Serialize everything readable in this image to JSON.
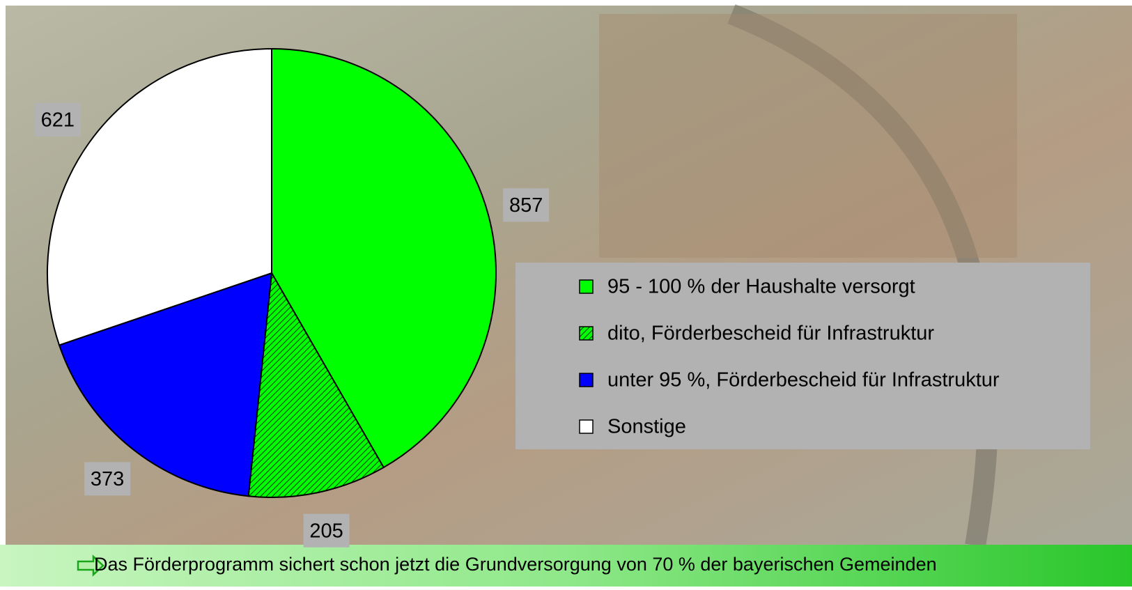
{
  "chart_data": {
    "type": "pie",
    "categories": [
      "95 - 100 % der Haushalte versorgt",
      "dito, Förderbescheid für Infrastruktur",
      "unter 95 %, Förderbescheid für Infrastruktur",
      "Sonstige"
    ],
    "values": [
      857,
      205,
      373,
      621
    ],
    "colors": [
      "#00ff00",
      "#00ff00",
      "#0000ff",
      "#ffffff"
    ],
    "hatch": [
      false,
      true,
      false,
      false
    ]
  },
  "footer": "Das Förderprogramm sichert schon jetzt die Grundversorgung von 70 % der bayerischen Gemeinden"
}
